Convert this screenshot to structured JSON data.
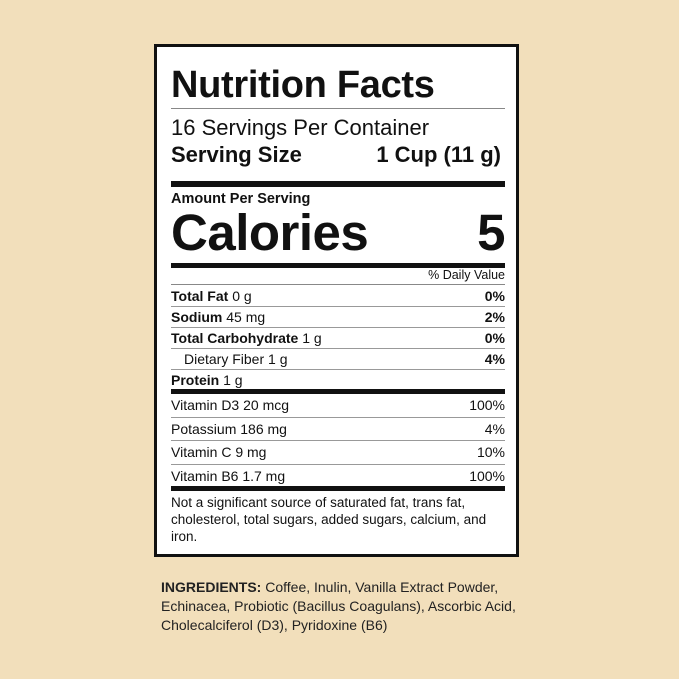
{
  "label": {
    "title": "Nutrition Facts",
    "servings_per_container": "16 Servings Per Container",
    "serving_size_label": "Serving Size",
    "serving_size_value": "1 Cup (11 g)",
    "amount_per_serving": "Amount Per Serving",
    "calories_label": "Calories",
    "calories_value": "5",
    "daily_value_header": "% Daily Value",
    "nutrients": [
      {
        "name": "Total Fat",
        "amount": "0 g",
        "dv": "0%"
      },
      {
        "name": "Sodium",
        "amount": "45 mg",
        "dv": "2%"
      },
      {
        "name": "Total Carbohydrate",
        "amount": "1 g",
        "dv": "0%"
      },
      {
        "name": "Dietary Fiber",
        "amount": "1 g",
        "dv": "4%"
      },
      {
        "name": "Protein",
        "amount": "1 g",
        "dv": ""
      }
    ],
    "vitamins": [
      {
        "text": "Vitamin D3 20 mcg",
        "dv": "100%"
      },
      {
        "text": "Potassium 186 mg",
        "dv": "4%"
      },
      {
        "text": "Vitamin C 9 mg",
        "dv": "10%"
      },
      {
        "text": "Vitamin B6 1.7 mg",
        "dv": "100%"
      }
    ],
    "footnote": "Not a significant source of saturated fat, trans fat, cholesterol, total sugars, added sugars, calcium, and iron."
  },
  "ingredients": {
    "heading": "INGREDIENTS:",
    "text": "Coffee, Inulin, Vanilla Extract Powder, Echinacea, Probiotic (Bacillus Coagulans), Ascorbic Acid, Cholecalciferol (D3), Pyridoxine (B6)"
  },
  "colors": {
    "background": "#f2dfbb",
    "label": "#ffffff",
    "ink": "#111111"
  }
}
